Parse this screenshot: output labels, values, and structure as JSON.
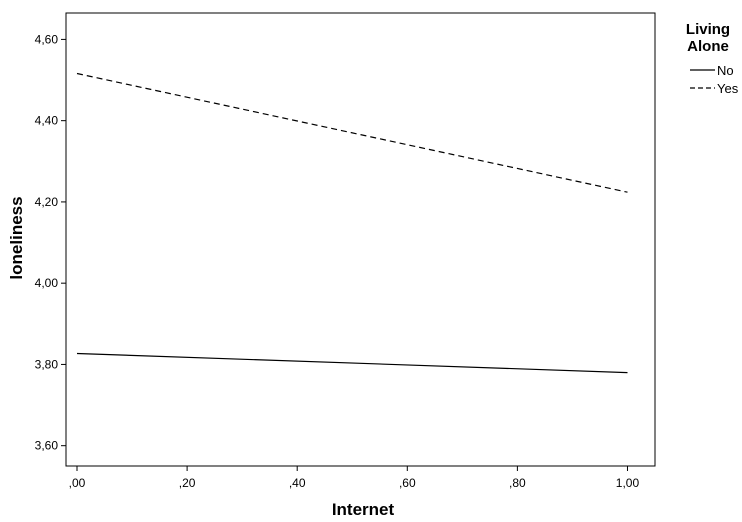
{
  "chart_data": {
    "type": "line",
    "title": "",
    "xlabel": "Internet",
    "ylabel": "loneliness",
    "xlim": [
      -0.02,
      1.05
    ],
    "ylim": [
      3.55,
      4.665
    ],
    "xticks": [
      0.0,
      0.2,
      0.4,
      0.6,
      0.8,
      1.0
    ],
    "xtick_labels": [
      ",00",
      ",20",
      ",40",
      ",60",
      ",80",
      "1,00"
    ],
    "yticks": [
      3.6,
      3.8,
      4.0,
      4.2,
      4.4,
      4.6
    ],
    "ytick_labels": [
      "3,60",
      "3,80",
      "4,00",
      "4,20",
      "4,40",
      "4,60"
    ],
    "grid": false,
    "legend": {
      "title": "Living Alone",
      "title_lines": [
        "Living",
        "Alone"
      ],
      "placement": "outside-right-top"
    },
    "series": [
      {
        "name": "No",
        "style": "solid",
        "color": "#000000",
        "x": [
          0.0,
          1.0
        ],
        "y": [
          3.827,
          3.78
        ]
      },
      {
        "name": "Yes",
        "style": "dashed",
        "color": "#000000",
        "x": [
          0.0,
          1.0
        ],
        "y": [
          4.516,
          4.224
        ]
      }
    ]
  }
}
